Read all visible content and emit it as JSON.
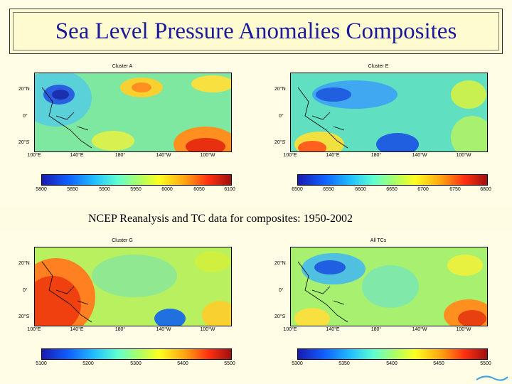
{
  "title": "Sea Level Pressure Anomalies Composites",
  "caption": "NCEP Reanalysis and TC data for composites: 1950-2002",
  "panels": [
    {
      "title": "Cluster A",
      "colorbar_ticks": [
        "5800",
        "5850",
        "5900",
        "5950",
        "6000",
        "6050",
        "6100"
      ]
    },
    {
      "title": "Cluster E",
      "colorbar_ticks": [
        "6500",
        "6550",
        "6600",
        "6650",
        "6700",
        "6750",
        "6800"
      ]
    },
    {
      "title": "Cluster G",
      "colorbar_ticks": [
        "5100",
        "5200",
        "5300",
        "5400",
        "5500"
      ]
    },
    {
      "title": "All TCs",
      "colorbar_ticks": [
        "5300",
        "5350",
        "5400",
        "5450",
        "5500"
      ]
    }
  ],
  "lat_labels": [
    "20°N",
    "0°",
    "20°S"
  ],
  "lon_labels": [
    "100°E",
    "140°E",
    "180°",
    "140°W",
    "100°W"
  ]
}
